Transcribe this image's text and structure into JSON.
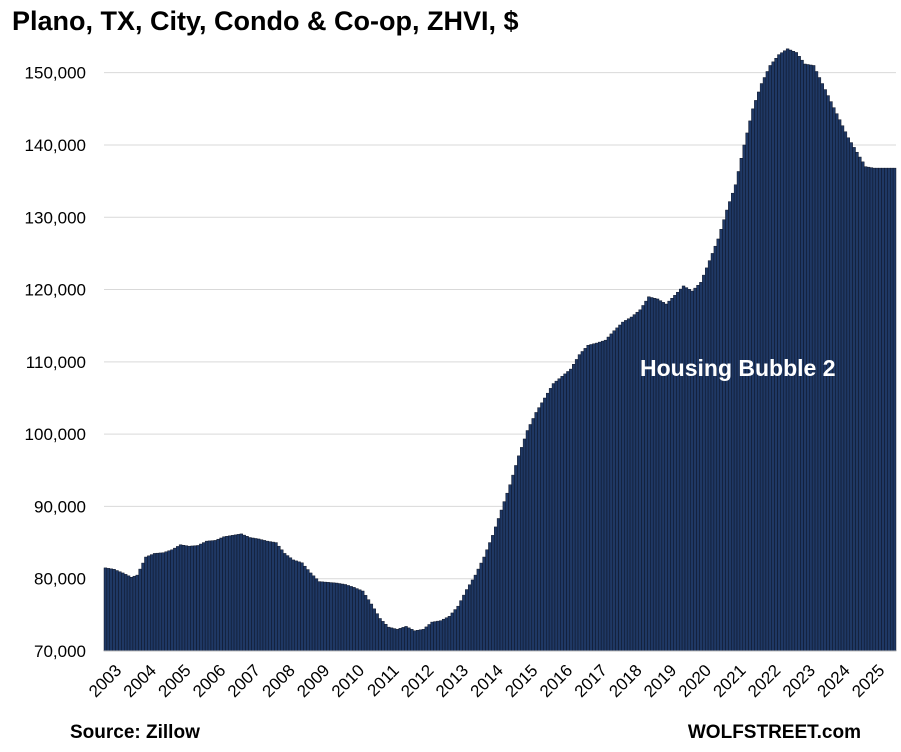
{
  "title": "Plano, TX, City, Condo & Co-op, ZHVI, $",
  "source": "Source: Zillow",
  "site": "WOLFSTREET.com",
  "colors": {
    "bar_fill": "#1f3864",
    "bar_edge": "#0a1020",
    "grid": "#d9d9d9",
    "annotation": "#ffffff"
  },
  "chart_data": {
    "type": "bar",
    "title": "Plano, TX, City, Condo & Co-op, ZHVI, $",
    "xlabel": "",
    "ylabel": "",
    "ylim": [
      70000,
      153000
    ],
    "y_ticks": [
      70000,
      80000,
      90000,
      100000,
      110000,
      120000,
      130000,
      140000,
      150000
    ],
    "y_tick_labels": [
      "70,000",
      "80,000",
      "90,000",
      "100,000",
      "110,000",
      "120,000",
      "130,000",
      "140,000",
      "150,000"
    ],
    "x_tick_labels": [
      "2003",
      "2004",
      "2005",
      "2006",
      "2007",
      "2008",
      "2009",
      "2010",
      "2011",
      "2012",
      "2013",
      "2014",
      "2015",
      "2016",
      "2017",
      "2018",
      "2019",
      "2020",
      "2021",
      "2022",
      "2023",
      "2024",
      "2025"
    ],
    "x_start": "2003-01",
    "x_end": "2025-10",
    "frequency": "monthly",
    "grid": true,
    "annotation": "Housing Bubble 2",
    "anchors": [
      [
        "2003-01",
        81500
      ],
      [
        "2003-04",
        81300
      ],
      [
        "2003-07",
        80800
      ],
      [
        "2003-10",
        80200
      ],
      [
        "2003-12",
        80500
      ],
      [
        "2004-03",
        83000
      ],
      [
        "2004-06",
        83500
      ],
      [
        "2004-09",
        83600
      ],
      [
        "2004-12",
        84000
      ],
      [
        "2005-03",
        84700
      ],
      [
        "2005-06",
        84500
      ],
      [
        "2005-09",
        84600
      ],
      [
        "2005-12",
        85200
      ],
      [
        "2006-03",
        85300
      ],
      [
        "2006-06",
        85800
      ],
      [
        "2006-09",
        86000
      ],
      [
        "2006-12",
        86200
      ],
      [
        "2007-03",
        85700
      ],
      [
        "2007-06",
        85500
      ],
      [
        "2007-09",
        85200
      ],
      [
        "2007-12",
        85000
      ],
      [
        "2008-03",
        83500
      ],
      [
        "2008-06",
        82600
      ],
      [
        "2008-09",
        82200
      ],
      [
        "2008-12",
        80800
      ],
      [
        "2009-03",
        79600
      ],
      [
        "2009-06",
        79500
      ],
      [
        "2009-09",
        79400
      ],
      [
        "2009-12",
        79200
      ],
      [
        "2010-03",
        78800
      ],
      [
        "2010-06",
        78300
      ],
      [
        "2010-09",
        76500
      ],
      [
        "2010-12",
        74500
      ],
      [
        "2011-03",
        73300
      ],
      [
        "2011-06",
        73000
      ],
      [
        "2011-09",
        73400
      ],
      [
        "2011-12",
        72800
      ],
      [
        "2012-03",
        73000
      ],
      [
        "2012-06",
        74000
      ],
      [
        "2012-09",
        74200
      ],
      [
        "2012-12",
        74800
      ],
      [
        "2013-03",
        76200
      ],
      [
        "2013-06",
        78500
      ],
      [
        "2013-09",
        80500
      ],
      [
        "2013-12",
        83000
      ],
      [
        "2014-03",
        86000
      ],
      [
        "2014-06",
        89500
      ],
      [
        "2014-09",
        93000
      ],
      [
        "2014-12",
        97000
      ],
      [
        "2015-03",
        100500
      ],
      [
        "2015-06",
        103000
      ],
      [
        "2015-09",
        105000
      ],
      [
        "2015-12",
        107000
      ],
      [
        "2016-03",
        108000
      ],
      [
        "2016-06",
        109000
      ],
      [
        "2016-09",
        111000
      ],
      [
        "2016-12",
        112300
      ],
      [
        "2017-03",
        112600
      ],
      [
        "2017-06",
        113000
      ],
      [
        "2017-09",
        114300
      ],
      [
        "2017-12",
        115500
      ],
      [
        "2018-03",
        116200
      ],
      [
        "2018-06",
        117200
      ],
      [
        "2018-09",
        119000
      ],
      [
        "2018-12",
        118700
      ],
      [
        "2019-03",
        118000
      ],
      [
        "2019-06",
        119200
      ],
      [
        "2019-09",
        120500
      ],
      [
        "2019-12",
        119800
      ],
      [
        "2020-03",
        121000
      ],
      [
        "2020-06",
        124000
      ],
      [
        "2020-09",
        127000
      ],
      [
        "2020-12",
        131000
      ],
      [
        "2021-03",
        134500
      ],
      [
        "2021-06",
        140000
      ],
      [
        "2021-09",
        145000
      ],
      [
        "2021-12",
        148500
      ],
      [
        "2022-03",
        151000
      ],
      [
        "2022-06",
        152500
      ],
      [
        "2022-09",
        153300
      ],
      [
        "2022-12",
        152800
      ],
      [
        "2023-03",
        151200
      ],
      [
        "2023-06",
        151000
      ],
      [
        "2023-09",
        148500
      ],
      [
        "2023-12",
        146000
      ],
      [
        "2024-03",
        143500
      ],
      [
        "2024-06",
        141000
      ],
      [
        "2024-09",
        139000
      ],
      [
        "2024-12",
        137000
      ],
      [
        "2025-03",
        136800
      ],
      [
        "2025-10",
        136800
      ]
    ]
  }
}
